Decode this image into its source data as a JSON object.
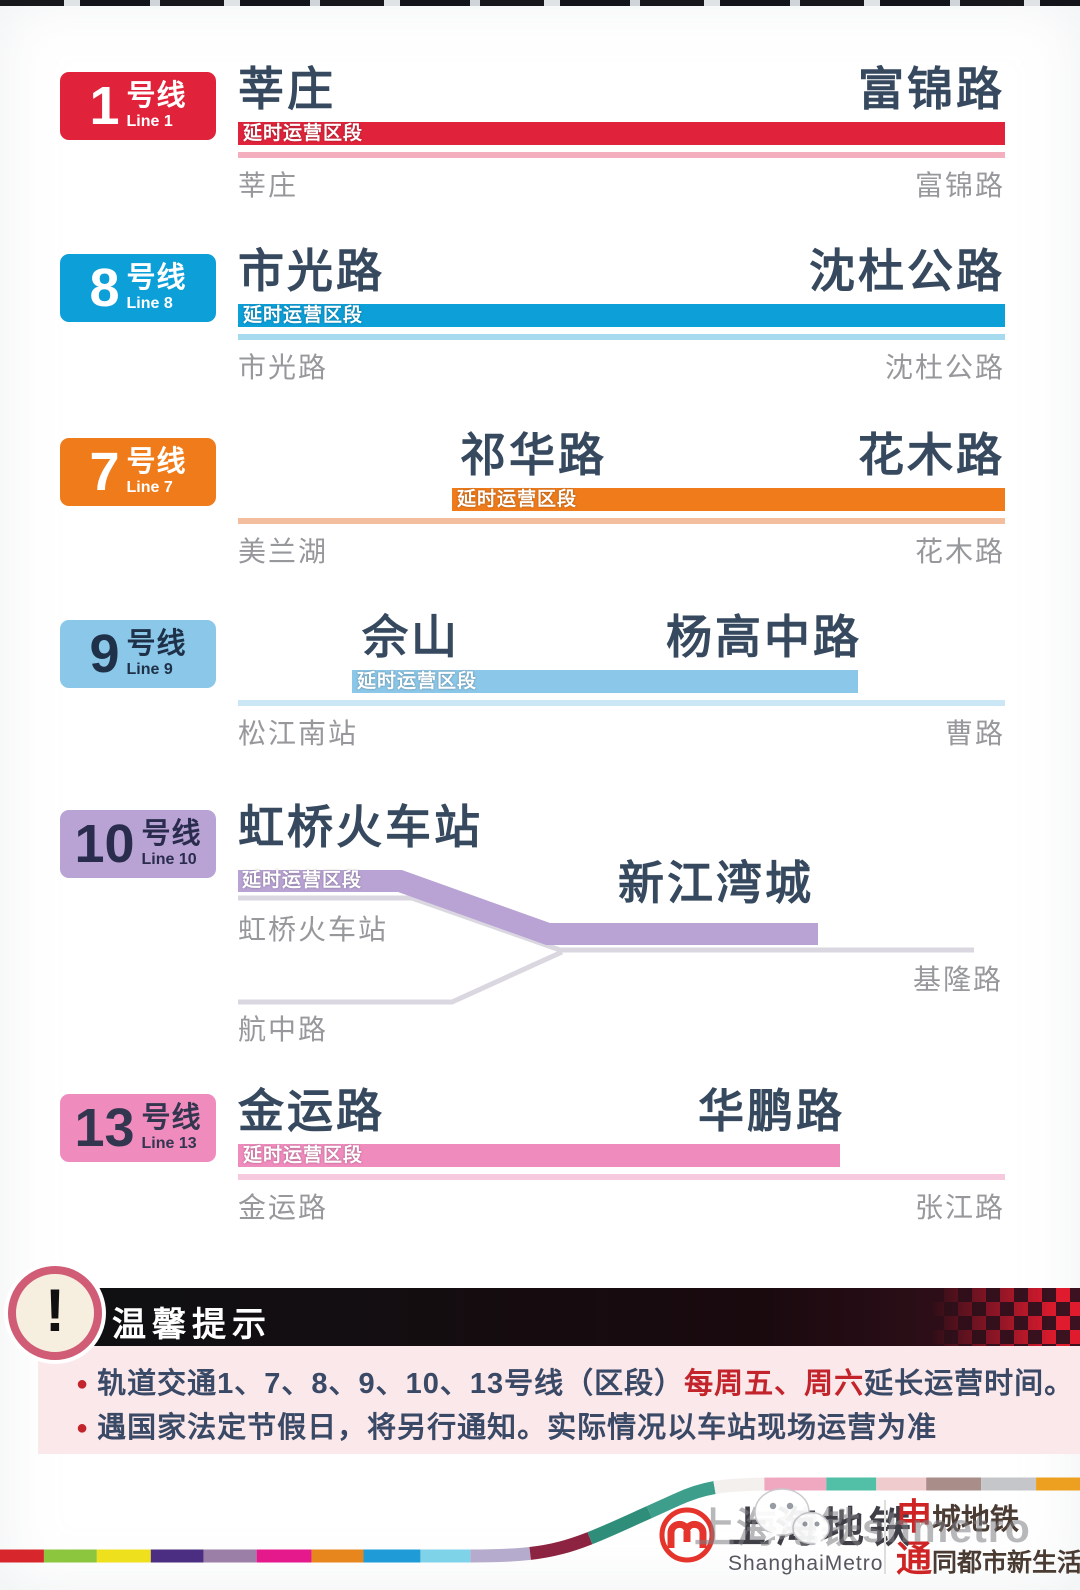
{
  "section_label": "延时运营区段",
  "lines": [
    {
      "id": "line-1",
      "number": "1",
      "suffix": "号线",
      "english": "Line 1",
      "color": "#E0233A",
      "thin_color": "#F3AFBD",
      "badge_fg": "#FFFFFF",
      "big_left": "莘庄",
      "big_right": "富锦路",
      "end_left": "莘庄",
      "end_right": "富锦路"
    },
    {
      "id": "line-8",
      "number": "8",
      "suffix": "号线",
      "english": "Line 8",
      "color": "#0C9FD8",
      "thin_color": "#A6DAEE",
      "badge_fg": "#FFFFFF",
      "big_left": "市光路",
      "big_right": "沈杜公路",
      "end_left": "市光路",
      "end_right": "沈杜公路"
    },
    {
      "id": "line-7",
      "number": "7",
      "suffix": "号线",
      "english": "Line 7",
      "color": "#EF7B1A",
      "thin_color": "#F2BE9E",
      "badge_fg": "#FFFFFF",
      "big_left": "祁华路",
      "big_right": "花木路",
      "end_left": "美兰湖",
      "end_right": "花木路"
    },
    {
      "id": "line-9",
      "number": "9",
      "suffix": "号线",
      "english": "Line 9",
      "color": "#8BC7E8",
      "thin_color": "#CBE6F4",
      "badge_fg": "#1E3148",
      "big_left": "佘山",
      "big_right": "杨高中路",
      "end_left": "松江南站",
      "end_right": "曹路"
    },
    {
      "id": "line-10",
      "number": "10",
      "suffix": "号线",
      "english": "Line 10",
      "color": "#B9A3D4",
      "thin_color": "#DBD7E0",
      "badge_fg": "#2A2C4E",
      "big_left": "虹桥火车站",
      "big_right": "新江湾城",
      "branch_top": "虹桥火车站",
      "branch_bottom": "航中路",
      "end_right": "基隆路"
    },
    {
      "id": "line-13",
      "number": "13",
      "suffix": "号线",
      "english": "Line 13",
      "color": "#F08BBE",
      "thin_color": "#F7C9DF",
      "badge_fg": "#33364F",
      "big_left": "金运路",
      "big_right": "华鹏路",
      "end_left": "金运路",
      "end_right": "张江路"
    }
  ],
  "tips": {
    "title": "温馨提示",
    "bullet1_pre": "轨道交通1、7、8、9、10、13号线（区段）",
    "bullet1_red": "每周五、周六",
    "bullet1_post": "延长运营时间。",
    "bullet2": "遇国家法定节假日，将另行通知。实际情况以车站现场运营为准"
  },
  "footer": {
    "logo_cn": "上海地铁",
    "logo_en": "ShanghaiMetro",
    "slogan_r1_red": "申",
    "slogan_r1_rest": "城地铁",
    "slogan_r2_red": "通",
    "slogan_r2_rest": "同都市新生活",
    "watermark": "上海地铁shmetro",
    "stripe_segments": [
      [
        "#D7262C",
        50
      ],
      [
        "#8CC63E",
        53
      ],
      [
        "#EFE01E",
        54
      ],
      [
        "#4B2D82",
        53
      ],
      [
        "#9B7FA6",
        53
      ],
      [
        "#E6198C",
        55
      ],
      [
        "#E8861E",
        52
      ],
      [
        "#1F9CD8",
        57
      ],
      [
        "#7FD3E8",
        50
      ],
      [
        "#B5ABCC",
        60
      ],
      [
        "#8C2340",
        62
      ],
      [
        "#2F8E79",
        65
      ],
      [
        "#3D9E8C",
        70
      ],
      [
        "#F4F0EE",
        50
      ],
      [
        "#F0A8C0",
        62
      ],
      [
        "#52BFA7",
        50
      ],
      [
        "#EFCBCE",
        50
      ],
      [
        "#A98D89",
        55
      ],
      [
        "#C5C6CA",
        55
      ],
      [
        "#EDA01F",
        50
      ],
      [
        "#2FA184",
        90
      ]
    ]
  }
}
